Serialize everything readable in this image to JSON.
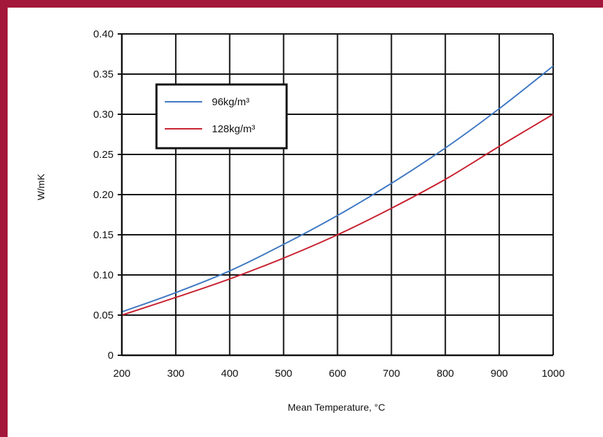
{
  "chart_data": {
    "type": "line",
    "title": "",
    "xlabel": "Mean Temperature, °C",
    "ylabel": "W/mK",
    "xlim": [
      200,
      1000
    ],
    "ylim": [
      0,
      0.4
    ],
    "xticks": [
      200,
      300,
      400,
      500,
      600,
      700,
      800,
      900,
      1000
    ],
    "yticks": [
      0,
      0.05,
      0.1,
      0.15,
      0.2,
      0.25,
      0.3,
      0.35,
      0.4
    ],
    "xtick_labels": [
      "200",
      "300",
      "400",
      "500",
      "600",
      "700",
      "800",
      "900",
      "1000"
    ],
    "ytick_labels": [
      "0",
      "0.05",
      "0.10",
      "0.15",
      "0.20",
      "0.25",
      "0.30",
      "0.35",
      "0.40"
    ],
    "grid": true,
    "legend_position": "top-left",
    "series": [
      {
        "name": "96kg/m³",
        "color": "#3f78c2",
        "x": [
          200,
          300,
          400,
          500,
          600,
          700,
          800,
          900,
          1000
        ],
        "y": [
          0.054,
          0.078,
          0.105,
          0.138,
          0.174,
          0.214,
          0.258,
          0.307,
          0.36
        ]
      },
      {
        "name": "128kg/m³",
        "color": "#c8202f",
        "x": [
          200,
          300,
          400,
          500,
          600,
          700,
          800,
          900,
          1000
        ],
        "y": [
          0.05,
          0.072,
          0.095,
          0.121,
          0.15,
          0.183,
          0.219,
          0.26,
          0.3
        ]
      }
    ]
  },
  "colors": {
    "frame_accent": "#a3173a"
  }
}
